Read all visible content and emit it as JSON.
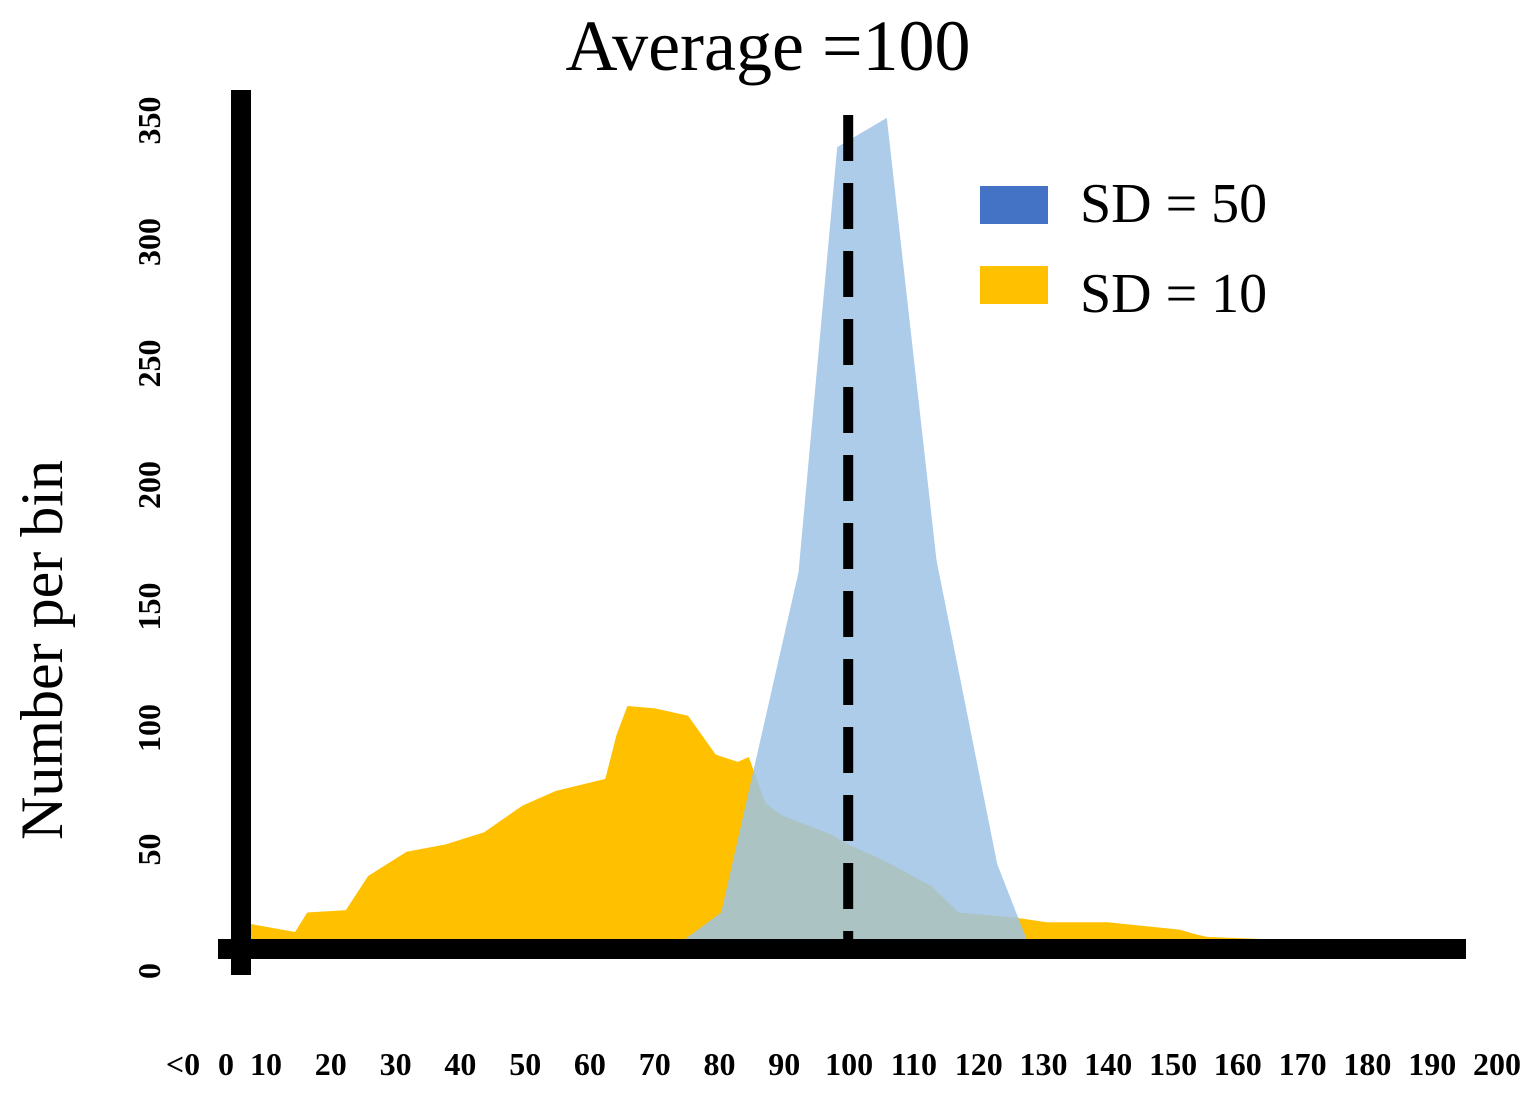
{
  "chart_data": {
    "type": "area",
    "title": "Average =100",
    "xlabel": "",
    "ylabel": "Number per bin",
    "ylim": [
      0,
      375
    ],
    "yticks": [
      0,
      50,
      100,
      150,
      200,
      250,
      300,
      350
    ],
    "ytick_labels": [
      "0",
      "50",
      "100",
      "150",
      "200",
      "250",
      "300",
      "350"
    ],
    "categories": [
      "<0",
      "0",
      "10",
      "20",
      "30",
      "40",
      "50",
      "60",
      "70",
      "80",
      "90",
      "100",
      "110",
      "120",
      "130",
      "140",
      "150",
      "160",
      "170",
      "180",
      "190",
      "200"
    ],
    "mean_line": {
      "x": 100,
      "style": "dashed",
      "color": "#000000"
    },
    "series": [
      {
        "name": "SD = 10",
        "color": "#FFC000",
        "opacity": 1.0,
        "x": [
          -10,
          -0.2,
          2,
          9,
          13,
          20,
          27,
          34,
          41,
          47,
          56,
          58,
          60,
          65,
          71,
          76,
          80,
          82,
          85,
          88,
          97,
          100,
          106,
          115,
          120,
          130,
          136,
          147,
          160,
          163,
          165,
          176,
          185,
          200
        ],
        "values": [
          11,
          7,
          15,
          16,
          30,
          40,
          43,
          48,
          59,
          65,
          70,
          88,
          100,
          99,
          96,
          80,
          77,
          79,
          60,
          55,
          47,
          43,
          37,
          26,
          15,
          13,
          11,
          11,
          8,
          6,
          5,
          4,
          2,
          0
        ]
      },
      {
        "name": "SD = 50",
        "color": "#9DC3E6",
        "opacity": 0.85,
        "x": [
          68,
          77,
          91,
          98,
          107,
          116,
          127,
          133,
          141
        ],
        "values": [
          0,
          15,
          155,
          330,
          342,
          160,
          35,
          0,
          0
        ]
      }
    ],
    "legend": {
      "position": "top-right",
      "entries": [
        {
          "label": "SD = 50",
          "color": "#4472C4"
        },
        {
          "label": "SD = 10",
          "color": "#FFC000"
        }
      ]
    }
  }
}
